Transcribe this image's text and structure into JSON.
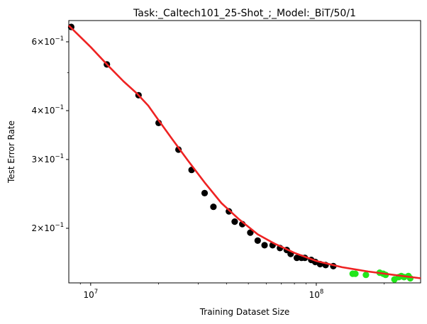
{
  "chart_data": {
    "type": "scatter",
    "title": "Task:_Caltech101_25-Shot_;_Model:_BiT/50/1",
    "xlabel": "Training Dataset Size",
    "ylabel": "Test Error Rate",
    "x_scale": "log",
    "y_scale": "log",
    "xlim": [
      8000000,
      290000000
    ],
    "ylim": [
      0.145,
      0.68
    ],
    "grid": false,
    "legend": "none",
    "x_ticks": [
      {
        "value": 10000000,
        "base": "10",
        "exp": "7"
      },
      {
        "value": 100000000,
        "base": "10",
        "exp": "8"
      }
    ],
    "y_ticks": [
      {
        "value": 0.6,
        "mant": "6",
        "base": "10",
        "exp": "−1"
      },
      {
        "value": 0.4,
        "mant": "4",
        "base": "10",
        "exp": "−1"
      },
      {
        "value": 0.3,
        "mant": "3",
        "base": "10",
        "exp": "−1"
      },
      {
        "value": 0.2,
        "mant": "2",
        "base": "10",
        "exp": "−1"
      }
    ],
    "y_minor_ticks": [
      0.5
    ],
    "series": [
      {
        "color": "#000000",
        "kind": "points",
        "x": [
          8200000,
          11800000,
          16300000,
          20000000,
          24500000,
          28000000,
          32000000,
          35000000,
          41000000,
          43500000,
          47000000,
          51000000,
          55000000,
          59000000,
          64000000,
          69000000,
          74000000,
          77000000,
          82000000,
          86000000,
          89000000,
          95000000,
          99000000,
          104000000,
          110000000,
          119000000
        ],
        "y": [
          0.655,
          0.525,
          0.438,
          0.372,
          0.318,
          0.282,
          0.246,
          0.227,
          0.221,
          0.208,
          0.205,
          0.195,
          0.186,
          0.181,
          0.181,
          0.178,
          0.176,
          0.172,
          0.168,
          0.168,
          0.168,
          0.166,
          0.164,
          0.162,
          0.161,
          0.16
        ]
      },
      {
        "color": "#22e61a",
        "kind": "points",
        "x": [
          145000000,
          149000000,
          166000000,
          191000000,
          198000000,
          203000000,
          222000000,
          232000000,
          238000000,
          245000000,
          256000000,
          261000000
        ],
        "y": [
          0.153,
          0.153,
          0.152,
          0.154,
          0.153,
          0.152,
          0.148,
          0.15,
          0.151,
          0.15,
          0.151,
          0.149
        ]
      },
      {
        "color": "#ee2222",
        "kind": "line",
        "x": [
          8000000,
          10000000,
          12000000,
          14000000,
          16000000,
          18000000,
          20000000,
          23000000,
          27000000,
          32000000,
          38000000,
          45000000,
          55000000,
          65000000,
          80000000,
          100000000,
          130000000,
          170000000,
          220000000,
          290000000
        ],
        "y": [
          0.66,
          0.582,
          0.52,
          0.475,
          0.443,
          0.412,
          0.378,
          0.338,
          0.298,
          0.262,
          0.232,
          0.212,
          0.193,
          0.183,
          0.173,
          0.165,
          0.159,
          0.155,
          0.152,
          0.149
        ]
      }
    ]
  }
}
